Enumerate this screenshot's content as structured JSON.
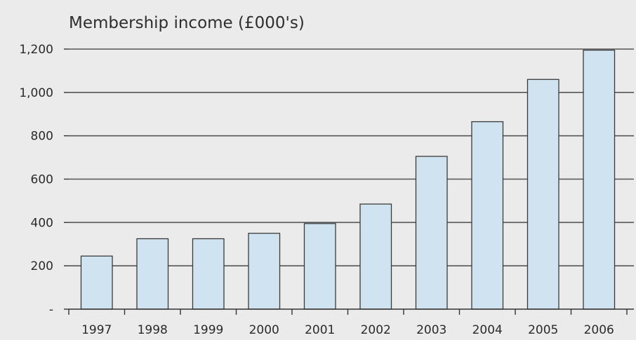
{
  "chart_data": {
    "type": "bar",
    "title": "Membership income (£000's)",
    "xlabel": "",
    "ylabel": "",
    "categories": [
      "1997",
      "1998",
      "1999",
      "2000",
      "2001",
      "2002",
      "2003",
      "2004",
      "2005",
      "2006"
    ],
    "values": [
      245,
      325,
      325,
      350,
      395,
      485,
      705,
      865,
      1060,
      1195
    ],
    "ylim": [
      0,
      1200
    ],
    "yticks": [
      0,
      200,
      400,
      600,
      800,
      1000,
      1200
    ],
    "ytick_labels": [
      "-",
      "200",
      "400",
      "600",
      "800",
      "1,000",
      "1,200"
    ],
    "grid": true,
    "legend": "none",
    "colors": {
      "bar_fill": "#cfe3f1",
      "bar_stroke": "#3a3a3a",
      "grid": "#555555",
      "background": "#ebebeb"
    }
  }
}
